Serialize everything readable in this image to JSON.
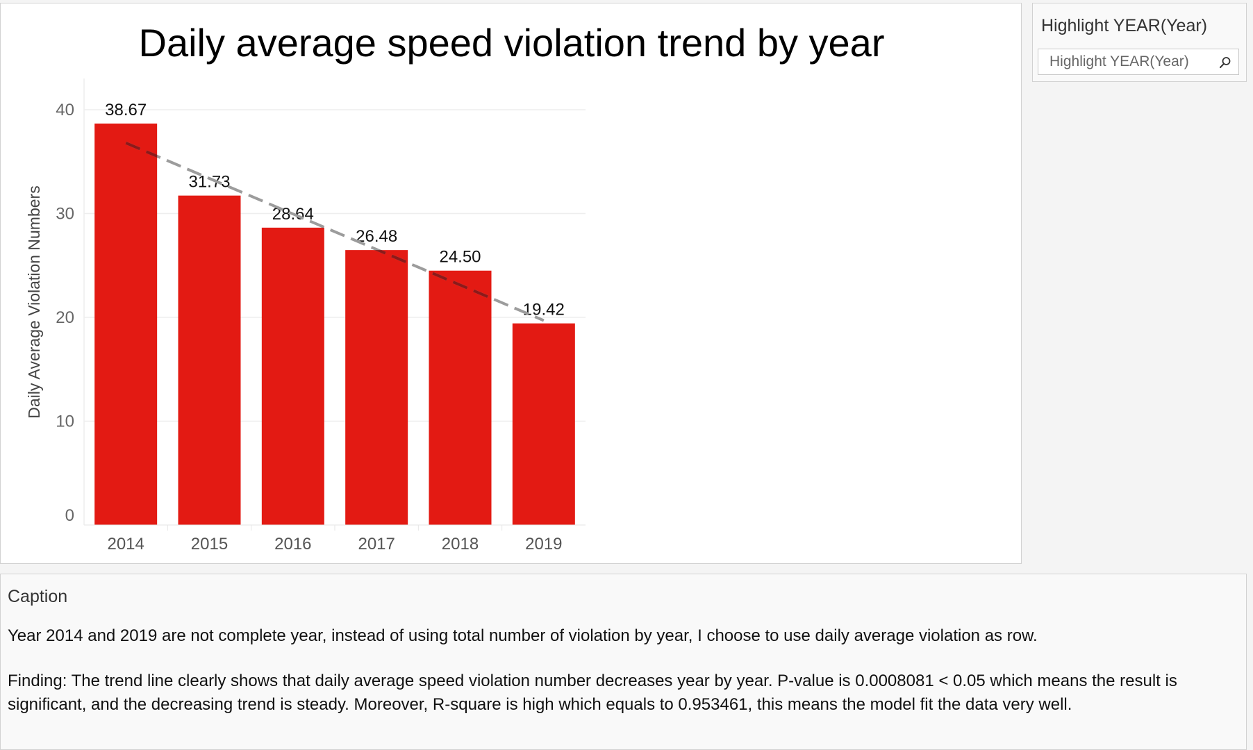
{
  "chart_data": {
    "type": "bar",
    "title": "Daily average speed violation trend by year",
    "xlabel": "",
    "ylabel": "Daily Average Violation Numbers",
    "categories": [
      "2014",
      "2015",
      "2016",
      "2017",
      "2018",
      "2019"
    ],
    "values": [
      38.67,
      31.73,
      28.64,
      26.48,
      24.5,
      19.42
    ],
    "data_labels": [
      "38.67",
      "31.73",
      "28.64",
      "26.48",
      "24.50",
      "19.42"
    ],
    "ylim": [
      0,
      42
    ],
    "yticks": [
      0,
      10,
      20,
      30,
      40
    ],
    "grid": true,
    "bar_color": "#e31a13",
    "trend_line": {
      "type": "linear",
      "color_light": "#9c9c9c",
      "color_dark": "#8b1a1a",
      "style": "dashed",
      "start_value": 36.8,
      "end_value": 19.7
    }
  },
  "filter": {
    "title": "Highlight YEAR(Year)",
    "placeholder": "Highlight YEAR(Year)",
    "icon": "search-icon"
  },
  "caption": {
    "title": "Caption",
    "paragraph1": "Year 2014 and 2019 are not complete year, instead of using total number of violation by year, I choose to use daily average violation as row.",
    "paragraph2": "Finding: The trend line clearly shows that daily average speed violation number decreases year by year. P-value is 0.0008081 < 0.05 which means the result is significant, and the decreasing trend is steady. Moreover, R-square is high which equals to 0.953461, this means the model fit the data very well."
  }
}
